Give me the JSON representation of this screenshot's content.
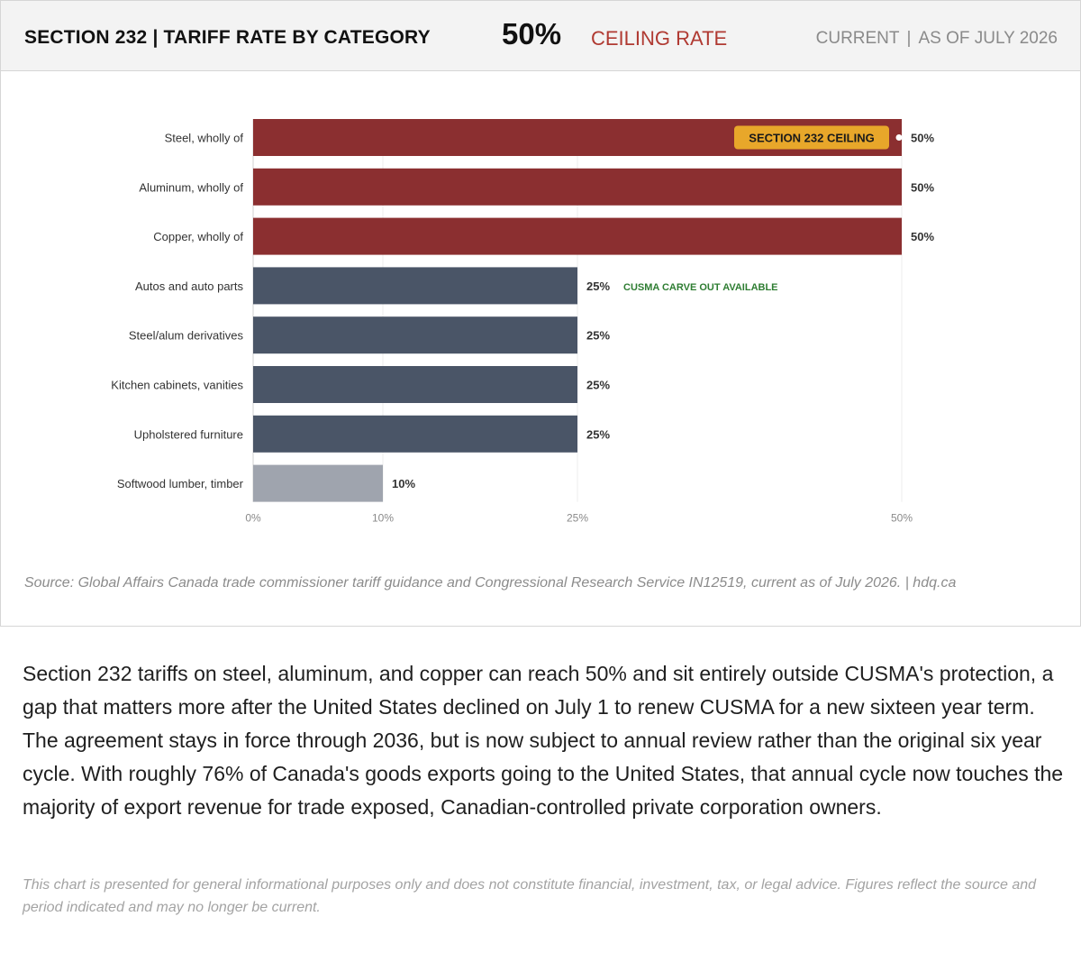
{
  "header": {
    "title": "SECTION 232 | TARIFF RATE BY CATEGORY",
    "headline_value": "50%",
    "headline_label": "CEILING RATE",
    "status": "CURRENT",
    "as_of": "AS OF JULY 2026"
  },
  "chart_data": {
    "type": "bar",
    "orientation": "horizontal",
    "categories": [
      "Steel, wholly of",
      "Aluminum, wholly of",
      "Copper, wholly of",
      "Autos and auto parts",
      "Steel/alum derivatives",
      "Kitchen cabinets, vanities",
      "Upholstered furniture",
      "Softwood lumber, timber"
    ],
    "values": [
      50,
      50,
      50,
      25,
      25,
      25,
      25,
      10
    ],
    "value_labels": [
      "50%",
      "50%",
      "50%",
      "25%",
      "25%",
      "25%",
      "25%",
      "10%"
    ],
    "bar_colors": [
      "#8b2f30",
      "#8b2f30",
      "#8b2f30",
      "#4a5567",
      "#4a5567",
      "#4a5567",
      "#4a5567",
      "#9fa4ae"
    ],
    "x_ticks": [
      0,
      10,
      25,
      50
    ],
    "x_tick_labels": [
      "0%",
      "10%",
      "25%",
      "50%"
    ],
    "xlim": [
      0,
      50
    ],
    "grid": "vertical",
    "annotations": [
      {
        "category_index": 0,
        "text": "SECTION 232 CEILING",
        "style": "badge",
        "color": "#e8a72a"
      },
      {
        "category_index": 3,
        "text": "CUSMA CARVE OUT AVAILABLE",
        "style": "note",
        "color": "#2e7d32"
      }
    ]
  },
  "source": "Source: Global Affairs Canada trade commissioner tariff guidance and Congressional Research Service IN12519, current as of July 2026.  |  hdq.ca",
  "body_text": "Section 232 tariffs on steel, aluminum, and copper can reach 50% and sit entirely outside CUSMA's protection, a gap that matters more after the United States declined on July 1 to renew CUSMA for a new sixteen year term. The agreement stays in force through 2036, but is now subject to annual review rather than the original six year cycle. With roughly 76% of Canada's goods exports going to the United States, that annual cycle now touches the majority of export revenue for trade exposed, Canadian-controlled private corporation owners.",
  "disclaimer": "This chart is presented for general informational purposes only and does not constitute financial, investment, tax, or legal advice. Figures reflect the source and period indicated and may no longer be current."
}
